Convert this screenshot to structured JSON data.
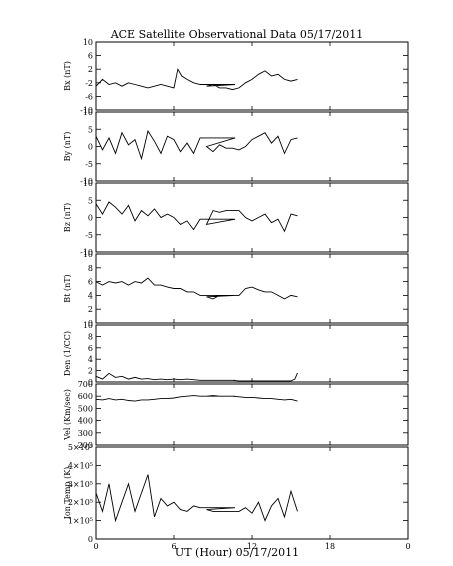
{
  "chart_data": {
    "type": "line",
    "title": "ACE Satellite Observational Data   05/17/2011",
    "xlabel": "UT (Hour)   05/17/2011",
    "x_ticks": [
      "0",
      "6",
      "12",
      "18",
      "0"
    ],
    "xlim": [
      0,
      24
    ],
    "panels": [
      {
        "name": "Bx",
        "ylabel": "Bx (nT)",
        "ylim": [
          -10,
          10
        ],
        "yticks": [
          "10",
          "6",
          "2",
          "-2",
          "-6",
          "-10"
        ],
        "ytick_values": [
          10,
          6,
          2,
          -2,
          -6,
          -10
        ],
        "x": [
          0.0,
          0.5,
          1.0,
          1.5,
          2.0,
          2.5,
          3.0,
          3.5,
          4.0,
          4.5,
          5.0,
          5.5,
          6.0,
          6.3,
          6.6,
          7.0,
          7.5,
          8.0,
          8.5,
          9.0,
          9.5,
          10.0,
          10.5,
          11.0,
          11.5,
          12.0,
          12.5,
          13.0,
          13.5,
          14.0,
          14.5,
          15.0,
          15.5
        ],
        "y": [
          -3.0,
          -1.0,
          -2.5,
          -2.0,
          -3.0,
          -2.0,
          -2.5,
          -3.0,
          -3.5,
          -3.0,
          -2.5,
          -3.0,
          -3.5,
          2.0,
          0.0,
          -1.0,
          -2.0,
          -2.5,
          -3.0,
          -2.5,
          -3.5,
          -3.5,
          -4.0,
          -3.5,
          -2.0,
          -1.0,
          0.5,
          1.5,
          0.0,
          0.5,
          -1.0,
          -1.5,
          -1.0
        ],
        "gap": [
          8.4,
          10.7
        ]
      },
      {
        "name": "By",
        "ylabel": "By (nT)",
        "ylim": [
          -10,
          10
        ],
        "yticks": [
          "10",
          "5",
          "0",
          "-5",
          "-10"
        ],
        "ytick_values": [
          10,
          5,
          0,
          -5,
          -10
        ],
        "x": [
          0.0,
          0.5,
          1.0,
          1.5,
          2.0,
          2.5,
          3.0,
          3.5,
          4.0,
          4.5,
          5.0,
          5.5,
          6.0,
          6.5,
          7.0,
          7.5,
          8.0,
          8.5,
          9.0,
          9.5,
          10.0,
          10.5,
          11.0,
          11.5,
          12.0,
          12.5,
          13.0,
          13.5,
          14.0,
          14.5,
          15.0,
          15.5
        ],
        "y": [
          3.0,
          -1.0,
          2.5,
          -2.0,
          4.0,
          0.5,
          2.0,
          -3.5,
          4.5,
          1.5,
          -2.0,
          3.0,
          2.0,
          -1.5,
          1.0,
          -2.0,
          2.5,
          0.0,
          -1.5,
          0.5,
          -0.5,
          -0.5,
          -1.0,
          0.0,
          2.0,
          3.0,
          4.0,
          1.0,
          3.0,
          -2.0,
          2.0,
          2.5
        ],
        "gap": [
          8.4,
          10.7
        ]
      },
      {
        "name": "Bz",
        "ylabel": "Bz (nT)",
        "ylim": [
          -10,
          10
        ],
        "yticks": [
          "10",
          "5",
          "0",
          "-5",
          "-10"
        ],
        "ytick_values": [
          10,
          5,
          0,
          -5,
          -10
        ],
        "x": [
          0.0,
          0.5,
          1.0,
          1.5,
          2.0,
          2.5,
          3.0,
          3.5,
          4.0,
          4.5,
          5.0,
          5.5,
          6.0,
          6.5,
          7.0,
          7.5,
          8.0,
          8.5,
          9.0,
          9.5,
          10.0,
          10.5,
          11.0,
          11.5,
          12.0,
          12.5,
          13.0,
          13.5,
          14.0,
          14.5,
          15.0,
          15.5
        ],
        "y": [
          4.0,
          1.0,
          4.5,
          3.0,
          1.0,
          3.5,
          -1.0,
          2.0,
          0.5,
          2.5,
          0.0,
          1.0,
          0.0,
          -2.0,
          -1.0,
          -3.5,
          -0.5,
          -2.0,
          2.0,
          1.5,
          2.0,
          2.0,
          2.0,
          0.0,
          -1.0,
          0.0,
          1.0,
          -1.5,
          -0.5,
          -4.0,
          1.0,
          0.5
        ],
        "gap": [
          8.4,
          10.7
        ]
      },
      {
        "name": "Bt",
        "ylabel": "Bt (nT)",
        "ylim": [
          0,
          10
        ],
        "yticks": [
          "10",
          "8",
          "6",
          "4",
          "2",
          "0"
        ],
        "ytick_values": [
          10,
          8,
          6,
          4,
          2,
          0
        ],
        "x": [
          0.0,
          0.5,
          1.0,
          1.5,
          2.0,
          2.5,
          3.0,
          3.5,
          4.0,
          4.5,
          5.0,
          5.5,
          6.0,
          6.5,
          7.0,
          7.5,
          8.0,
          8.5,
          9.0,
          9.5,
          10.0,
          10.5,
          11.0,
          11.5,
          12.0,
          12.5,
          13.0,
          13.5,
          14.0,
          14.5,
          15.0,
          15.5
        ],
        "y": [
          6.0,
          5.5,
          6.0,
          5.8,
          6.0,
          5.5,
          6.0,
          5.8,
          6.5,
          5.5,
          5.5,
          5.2,
          5.0,
          5.0,
          4.5,
          4.5,
          4.0,
          3.8,
          3.5,
          4.0,
          4.0,
          4.0,
          4.0,
          5.0,
          5.2,
          4.8,
          4.5,
          4.5,
          4.0,
          3.5,
          4.0,
          3.8
        ],
        "gap": [
          8.4,
          10.7
        ]
      },
      {
        "name": "Den",
        "ylabel": "Den (1/CC)",
        "ylim": [
          0,
          10
        ],
        "yticks": [
          "10",
          "8",
          "6",
          "4",
          "2",
          "0"
        ],
        "ytick_values": [
          10,
          8,
          6,
          4,
          2,
          0
        ],
        "x": [
          0.0,
          0.5,
          1.0,
          1.5,
          2.0,
          2.5,
          3.0,
          3.5,
          4.0,
          4.5,
          5.0,
          5.5,
          6.0,
          6.5,
          7.0,
          7.5,
          8.0,
          8.5,
          9.0,
          9.5,
          10.0,
          10.5,
          11.0,
          11.5,
          12.0,
          12.5,
          13.0,
          13.5,
          14.0,
          14.5,
          15.0,
          15.3,
          15.5
        ],
        "y": [
          1.0,
          0.5,
          1.5,
          0.8,
          1.0,
          0.5,
          0.8,
          0.5,
          0.6,
          0.4,
          0.5,
          0.4,
          0.5,
          0.4,
          0.5,
          0.4,
          0.3,
          0.3,
          0.3,
          0.3,
          0.3,
          0.3,
          0.2,
          0.2,
          0.2,
          0.2,
          0.2,
          0.2,
          0.2,
          0.2,
          0.2,
          0.5,
          1.6
        ],
        "gap": [
          8.4,
          10.7
        ]
      },
      {
        "name": "Vel",
        "ylabel": "Vel (Km/sec)",
        "ylim": [
          200,
          700
        ],
        "yticks": [
          "700",
          "600",
          "500",
          "400",
          "300",
          "200"
        ],
        "ytick_values": [
          700,
          600,
          500,
          400,
          300,
          200
        ],
        "x": [
          0.0,
          0.5,
          1.0,
          1.5,
          2.0,
          2.5,
          3.0,
          3.5,
          4.0,
          4.5,
          5.0,
          5.5,
          6.0,
          6.5,
          7.0,
          7.5,
          8.0,
          8.5,
          9.0,
          9.5,
          10.0,
          10.5,
          11.0,
          11.5,
          12.0,
          12.5,
          13.0,
          13.5,
          14.0,
          14.5,
          15.0,
          15.5
        ],
        "y": [
          575,
          570,
          580,
          570,
          575,
          565,
          560,
          570,
          570,
          575,
          580,
          580,
          585,
          595,
          600,
          605,
          600,
          600,
          605,
          600,
          600,
          600,
          595,
          590,
          590,
          585,
          580,
          580,
          575,
          570,
          575,
          560
        ],
        "gap": [
          8.4,
          10.7
        ]
      },
      {
        "name": "Ion Temp",
        "ylabel": "Ion Temp (K)",
        "ylim": [
          0,
          500000
        ],
        "yticks": [
          "5×10⁵",
          "4×10⁵",
          "3×10⁵",
          "2×10⁵",
          "1×10⁵",
          "0"
        ],
        "ytick_values": [
          500000,
          400000,
          300000,
          200000,
          100000,
          0
        ],
        "x": [
          0.0,
          0.5,
          1.0,
          1.5,
          2.0,
          2.5,
          3.0,
          3.5,
          4.0,
          4.5,
          5.0,
          5.5,
          6.0,
          6.5,
          7.0,
          7.5,
          8.0,
          8.5,
          9.0,
          9.5,
          10.0,
          10.5,
          11.0,
          11.5,
          12.0,
          12.5,
          13.0,
          13.5,
          14.0,
          14.5,
          15.0,
          15.5
        ],
        "y": [
          250000,
          150000,
          300000,
          100000,
          200000,
          300000,
          150000,
          250000,
          350000,
          120000,
          220000,
          180000,
          200000,
          160000,
          150000,
          180000,
          170000,
          160000,
          150000,
          150000,
          150000,
          150000,
          150000,
          170000,
          140000,
          200000,
          100000,
          180000,
          220000,
          120000,
          260000,
          150000
        ],
        "gap": [
          8.4,
          10.7
        ]
      }
    ]
  }
}
